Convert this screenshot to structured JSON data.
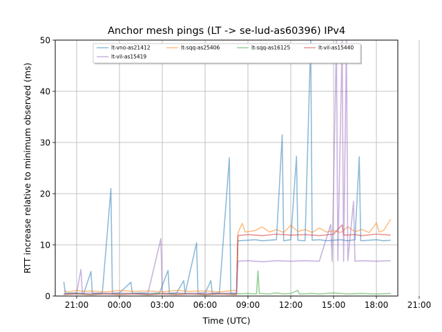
{
  "chart_data": {
    "type": "line",
    "title": "Anchor mesh pings (LT -> se-lud-as60396) IPv4",
    "xlabel": "Time (UTC)",
    "ylabel": "RTT increase relative to minimum observed (ms)",
    "x_unit": "hours",
    "xlim": [
      -1.5,
      22.5
    ],
    "ylim": [
      0,
      50
    ],
    "x_ticks": [
      {
        "value": 0,
        "label": "21:00"
      },
      {
        "value": 3,
        "label": "00:00"
      },
      {
        "value": 6,
        "label": "03:00"
      },
      {
        "value": 9,
        "label": "06:00"
      },
      {
        "value": 12,
        "label": "09:00"
      },
      {
        "value": 15,
        "label": "12:00"
      },
      {
        "value": 18,
        "label": "15:00"
      },
      {
        "value": 21,
        "label": "18:00"
      },
      {
        "value": 24,
        "label": "21:00"
      }
    ],
    "y_ticks": [
      0,
      10,
      20,
      30,
      40,
      50
    ],
    "grid": true,
    "legend_position": "top",
    "series": [
      {
        "name": "lt-vno-as21412",
        "color": "#1f77b4",
        "points": [
          [
            -0.9,
            2.8
          ],
          [
            -0.8,
            0.6
          ],
          [
            -0.5,
            0.5
          ],
          [
            0,
            0.6
          ],
          [
            0.5,
            0.5
          ],
          [
            1,
            4.8
          ],
          [
            1.1,
            0.5
          ],
          [
            1.8,
            0.6
          ],
          [
            2.4,
            21
          ],
          [
            2.5,
            0.5
          ],
          [
            3,
            0.6
          ],
          [
            3.8,
            2.7
          ],
          [
            3.9,
            0.5
          ],
          [
            4.5,
            0.6
          ],
          [
            5,
            0.5
          ],
          [
            5.8,
            0.6
          ],
          [
            6.4,
            5
          ],
          [
            6.5,
            0.5
          ],
          [
            7,
            0.6
          ],
          [
            7.5,
            3
          ],
          [
            7.6,
            0.5
          ],
          [
            8.4,
            10.4
          ],
          [
            8.5,
            0.5
          ],
          [
            9,
            0.6
          ],
          [
            9.4,
            3
          ],
          [
            9.5,
            0.5
          ],
          [
            10,
            0.6
          ],
          [
            10.7,
            27
          ],
          [
            10.8,
            0.5
          ],
          [
            11.2,
            0.5
          ],
          [
            11.3,
            10.8
          ],
          [
            12,
            10.9
          ],
          [
            12.5,
            11
          ],
          [
            13,
            10.8
          ],
          [
            13.5,
            10.9
          ],
          [
            14,
            11
          ],
          [
            14.4,
            31.5
          ],
          [
            14.5,
            10.8
          ],
          [
            15,
            11
          ],
          [
            15.4,
            27.3
          ],
          [
            15.5,
            10.9
          ],
          [
            16,
            10.8
          ],
          [
            16.4,
            50
          ],
          [
            16.5,
            10.9
          ],
          [
            17,
            11
          ],
          [
            17.5,
            10.8
          ],
          [
            18,
            10.9
          ],
          [
            18.5,
            11
          ],
          [
            19,
            10.8
          ],
          [
            19.5,
            11
          ],
          [
            19.8,
            27.2
          ],
          [
            19.9,
            10.8
          ],
          [
            20.5,
            10.9
          ],
          [
            21,
            11
          ],
          [
            21.5,
            10.8
          ],
          [
            22,
            10.9
          ]
        ]
      },
      {
        "name": "lt-sqq-as25406",
        "color": "#ff7f0e",
        "points": [
          [
            -0.9,
            1
          ],
          [
            -0.5,
            0.8
          ],
          [
            0,
            1.1
          ],
          [
            0.5,
            0.9
          ],
          [
            1,
            1
          ],
          [
            2,
            0.8
          ],
          [
            3,
            1.1
          ],
          [
            4,
            0.9
          ],
          [
            5,
            1
          ],
          [
            6,
            0.8
          ],
          [
            7,
            1.1
          ],
          [
            8,
            0.9
          ],
          [
            9,
            1
          ],
          [
            10,
            0.8
          ],
          [
            11,
            1.1
          ],
          [
            11.2,
            1
          ],
          [
            11.3,
            12.3
          ],
          [
            11.6,
            14.2
          ],
          [
            11.8,
            12.5
          ],
          [
            12.5,
            12.8
          ],
          [
            13,
            13.5
          ],
          [
            13.5,
            12.5
          ],
          [
            14,
            13
          ],
          [
            14.5,
            12.4
          ],
          [
            15,
            13.8
          ],
          [
            15.5,
            12.6
          ],
          [
            16,
            13
          ],
          [
            16.5,
            12.4
          ],
          [
            17,
            13.3
          ],
          [
            17.5,
            12.5
          ],
          [
            18,
            12.8
          ],
          [
            18.5,
            12.4
          ],
          [
            19,
            13.5
          ],
          [
            19.5,
            12.6
          ],
          [
            20,
            13
          ],
          [
            20.5,
            12.4
          ],
          [
            21,
            14.3
          ],
          [
            21.2,
            12.5
          ],
          [
            21.5,
            12.8
          ],
          [
            22,
            15
          ]
        ]
      },
      {
        "name": "lt-sqq-as16125",
        "color": "#2ca02c",
        "points": [
          [
            -0.9,
            0.4
          ],
          [
            0,
            0.5
          ],
          [
            1,
            0.3
          ],
          [
            2,
            0.5
          ],
          [
            3,
            0.4
          ],
          [
            4,
            0.5
          ],
          [
            5,
            0.3
          ],
          [
            6,
            0.5
          ],
          [
            7,
            0.4
          ],
          [
            8,
            0.5
          ],
          [
            9,
            0.3
          ],
          [
            10,
            0.5
          ],
          [
            11,
            0.4
          ],
          [
            12,
            0.5
          ],
          [
            12.6,
            0.4
          ],
          [
            12.7,
            4.9
          ],
          [
            12.8,
            0.5
          ],
          [
            13.5,
            0.4
          ],
          [
            14,
            0.6
          ],
          [
            14.5,
            0.4
          ],
          [
            15,
            0.5
          ],
          [
            15.5,
            1.1
          ],
          [
            15.6,
            0.4
          ],
          [
            16.5,
            0.5
          ],
          [
            17,
            0.4
          ],
          [
            18,
            0.6
          ],
          [
            19,
            0.4
          ],
          [
            20,
            0.5
          ],
          [
            21,
            0.4
          ],
          [
            22,
            0.5
          ]
        ]
      },
      {
        "name": "lt-vil-as15440",
        "color": "#d62728",
        "points": [
          [
            -0.9,
            0.3
          ],
          [
            0,
            0.4
          ],
          [
            1,
            0.3
          ],
          [
            2,
            0.4
          ],
          [
            3,
            0.3
          ],
          [
            4,
            0.4
          ],
          [
            5,
            0.3
          ],
          [
            6,
            0.4
          ],
          [
            7,
            0.3
          ],
          [
            8,
            0.4
          ],
          [
            9,
            0.3
          ],
          [
            10,
            0.4
          ],
          [
            11,
            0.3
          ],
          [
            11.2,
            0.3
          ],
          [
            11.3,
            11.8
          ],
          [
            12,
            12
          ],
          [
            13,
            11.8
          ],
          [
            14,
            12.1
          ],
          [
            15,
            11.9
          ],
          [
            16,
            12
          ],
          [
            17,
            11.8
          ],
          [
            18,
            12.1
          ],
          [
            18.6,
            13.9
          ],
          [
            18.7,
            11.9
          ],
          [
            19.5,
            12
          ],
          [
            20,
            11.8
          ],
          [
            21,
            12.1
          ],
          [
            22,
            11.9
          ]
        ]
      },
      {
        "name": "lt-vil-as15419",
        "color": "#9467bd",
        "points": [
          [
            -0.9,
            0.5
          ],
          [
            0,
            0.6
          ],
          [
            0.3,
            5.2
          ],
          [
            0.4,
            0.5
          ],
          [
            1,
            0.6
          ],
          [
            2,
            0.5
          ],
          [
            3,
            0.6
          ],
          [
            4,
            0.5
          ],
          [
            5,
            0.6
          ],
          [
            5.9,
            11.2
          ],
          [
            6,
            0.5
          ],
          [
            7,
            0.6
          ],
          [
            8,
            0.5
          ],
          [
            9,
            0.6
          ],
          [
            10,
            0.5
          ],
          [
            11,
            0.6
          ],
          [
            11.2,
            0.5
          ],
          [
            11.3,
            6.8
          ],
          [
            12,
            6.9
          ],
          [
            13,
            6.7
          ],
          [
            14,
            6.9
          ],
          [
            15,
            6.8
          ],
          [
            16,
            6.9
          ],
          [
            17,
            6.8
          ],
          [
            17.8,
            14
          ],
          [
            17.9,
            6.8
          ],
          [
            18.2,
            50
          ],
          [
            18.3,
            6.9
          ],
          [
            18.6,
            50
          ],
          [
            18.7,
            6.8
          ],
          [
            18.9,
            50
          ],
          [
            19,
            6.9
          ],
          [
            19.4,
            18.5
          ],
          [
            19.5,
            6.8
          ],
          [
            20,
            6.9
          ],
          [
            21,
            6.8
          ],
          [
            22,
            6.9
          ]
        ]
      }
    ]
  }
}
